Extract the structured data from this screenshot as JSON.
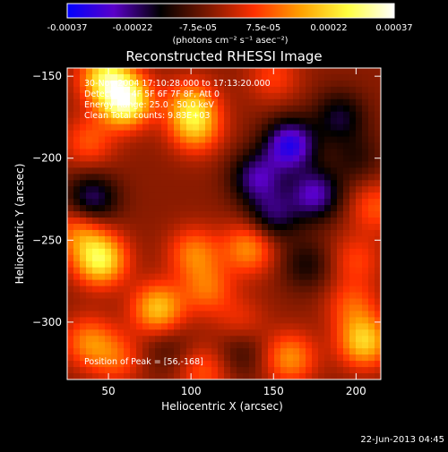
{
  "chart_data": {
    "type": "heatmap",
    "title": "Reconstructed RHESSI Image",
    "xlabel": "Heliocentric X (arcsec)",
    "ylabel": "Heliocentric Y (arcsec)",
    "xlim": [
      25,
      215
    ],
    "ylim": [
      -335,
      -145
    ],
    "x_ticks": [
      50,
      100,
      150,
      200
    ],
    "y_ticks": [
      -150,
      -200,
      -250,
      -300
    ],
    "colorbar": {
      "ticks": [
        "-0.00037",
        "-0.00022",
        "-7.5e-05",
        "7.5e-05",
        "0.00022",
        "0.00037"
      ],
      "units": "(photons cm⁻² s⁻¹ asec⁻²)",
      "range": [
        -0.00037,
        0.00037
      ],
      "stops": [
        "#0000ff",
        "#5a00c8",
        "#000000",
        "#7a1800",
        "#ff3000",
        "#ffa000",
        "#ffff40",
        "#ffffff"
      ]
    },
    "annotations": [
      "30-Nov-2004 17:10:28.000 to 17:13:20.000",
      "Detectors: 4F 5F 6F 7F 8F, Att 0",
      "Energy Range: 25.0 - 50.0 keV",
      "Clean   Total counts: 9.83E+03"
    ],
    "peak_label": "Position of Peak = [56,-168]",
    "peak": [
      56,
      -168
    ],
    "blobs": [
      {
        "x": 60,
        "y": -165,
        "v": 0.00037
      },
      {
        "x": 48,
        "y": -150,
        "v": 0.00026
      },
      {
        "x": 38,
        "y": -190,
        "v": 0.00012
      },
      {
        "x": 100,
        "y": -168,
        "v": 0.0002
      },
      {
        "x": 103,
        "y": -182,
        "v": 0.00018
      },
      {
        "x": 45,
        "y": -262,
        "v": 0.0003
      },
      {
        "x": 32,
        "y": -245,
        "v": 0.00015
      },
      {
        "x": 80,
        "y": -292,
        "v": 0.00024
      },
      {
        "x": 102,
        "y": -258,
        "v": 0.00016
      },
      {
        "x": 110,
        "y": -280,
        "v": 0.00014
      },
      {
        "x": 108,
        "y": -330,
        "v": 0.00012
      },
      {
        "x": 135,
        "y": -255,
        "v": 0.00018
      },
      {
        "x": 38,
        "y": -312,
        "v": 0.00016
      },
      {
        "x": 55,
        "y": -322,
        "v": 0.00012
      },
      {
        "x": 160,
        "y": -322,
        "v": 0.00018
      },
      {
        "x": 205,
        "y": -312,
        "v": 0.00025
      },
      {
        "x": 198,
        "y": -290,
        "v": 0.00012
      },
      {
        "x": 212,
        "y": -230,
        "v": 0.00012
      },
      {
        "x": 200,
        "y": -262,
        "v": 0.0001
      },
      {
        "x": 150,
        "y": -150,
        "v": 0.0001
      },
      {
        "x": 130,
        "y": -300,
        "v": 8e-05
      },
      {
        "x": 160,
        "y": -192,
        "v": -0.00028
      },
      {
        "x": 140,
        "y": -212,
        "v": -0.0002
      },
      {
        "x": 175,
        "y": -222,
        "v": -0.00022
      },
      {
        "x": 150,
        "y": -235,
        "v": -0.00016
      },
      {
        "x": 190,
        "y": -175,
        "v": -0.00014
      },
      {
        "x": 40,
        "y": -225,
        "v": -0.00018
      },
      {
        "x": 170,
        "y": -265,
        "v": -0.0001
      },
      {
        "x": 130,
        "y": -318,
        "v": -8e-05
      },
      {
        "x": 85,
        "y": -315,
        "v": -6e-05
      },
      {
        "x": 200,
        "y": -200,
        "v": -8e-05
      }
    ]
  },
  "footer": {
    "date": "22-Jun-2013 04:45"
  }
}
